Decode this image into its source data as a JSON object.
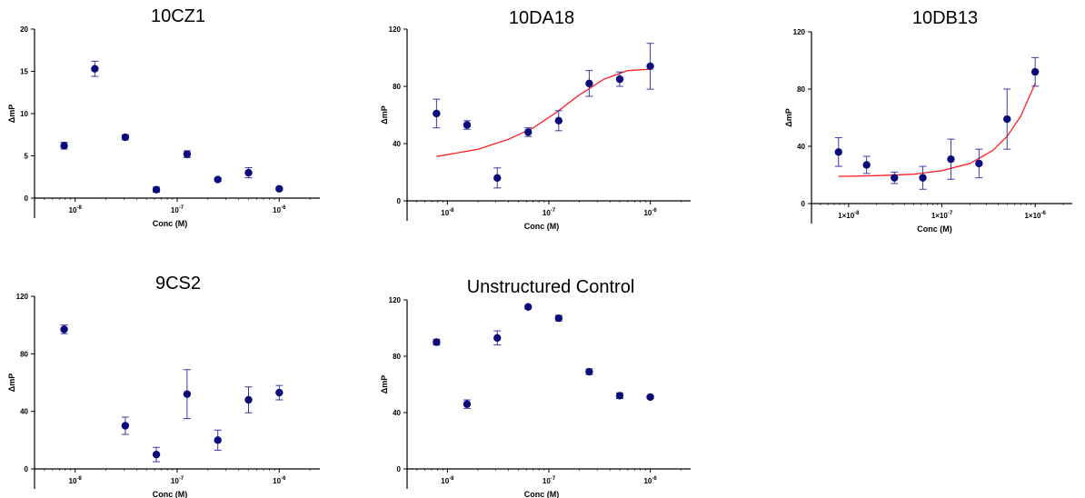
{
  "chart_data": [
    {
      "type": "scatter",
      "title": "10CZ1",
      "xlabel": "Conc (M)",
      "ylabel": "ΔmP",
      "xscale": "log",
      "ylim": [
        0,
        20
      ],
      "yticks": [
        0,
        5,
        10,
        15,
        20
      ],
      "xticks": [
        {
          "value": 1e-08,
          "base": "10",
          "exp": "-8"
        },
        {
          "value": 1e-07,
          "base": "10",
          "exp": "-7"
        },
        {
          "value": 1e-06,
          "base": "10",
          "exp": "-6"
        }
      ],
      "fit_curve": false,
      "points": [
        {
          "x": 7.8e-09,
          "y": 6.2,
          "err": 0.4
        },
        {
          "x": 1.56e-08,
          "y": 15.3,
          "err": 0.9
        },
        {
          "x": 3.1e-08,
          "y": 7.2,
          "err": 0.3
        },
        {
          "x": 6.25e-08,
          "y": 1.0,
          "err": 0.3
        },
        {
          "x": 1.25e-07,
          "y": 5.2,
          "err": 0.4
        },
        {
          "x": 2.5e-07,
          "y": 2.2,
          "err": 0.2
        },
        {
          "x": 5e-07,
          "y": 3.0,
          "err": 0.6
        },
        {
          "x": 1e-06,
          "y": 1.1,
          "err": 0.2
        }
      ]
    },
    {
      "type": "scatter",
      "title": "10DA18",
      "xlabel": "Conc (M)",
      "ylabel": "ΔmP",
      "xscale": "log",
      "ylim": [
        0,
        120
      ],
      "yticks": [
        0,
        40,
        80,
        120
      ],
      "xticks": [
        {
          "value": 1e-08,
          "base": "10",
          "exp": "-8"
        },
        {
          "value": 1e-07,
          "base": "10",
          "exp": "-7"
        },
        {
          "value": 1e-06,
          "base": "10",
          "exp": "-6"
        }
      ],
      "fit_curve": true,
      "curve_color": "#ff2020",
      "points": [
        {
          "x": 7.8e-09,
          "y": 61,
          "err": 10
        },
        {
          "x": 1.56e-08,
          "y": 53,
          "err": 3
        },
        {
          "x": 3.1e-08,
          "y": 16,
          "err": 7
        },
        {
          "x": 6.25e-08,
          "y": 48,
          "err": 3
        },
        {
          "x": 1.25e-07,
          "y": 56,
          "err": 7
        },
        {
          "x": 2.5e-07,
          "y": 82,
          "err": 9
        },
        {
          "x": 5e-07,
          "y": 85,
          "err": 5
        },
        {
          "x": 1e-06,
          "y": 94,
          "err": 16
        }
      ],
      "curve": [
        {
          "x": 7.8e-09,
          "y": 31
        },
        {
          "x": 2e-08,
          "y": 36
        },
        {
          "x": 4e-08,
          "y": 43
        },
        {
          "x": 7e-08,
          "y": 51
        },
        {
          "x": 1.2e-07,
          "y": 62
        },
        {
          "x": 2e-07,
          "y": 74
        },
        {
          "x": 3.5e-07,
          "y": 85
        },
        {
          "x": 6e-07,
          "y": 91
        },
        {
          "x": 1e-06,
          "y": 92
        }
      ]
    },
    {
      "type": "scatter",
      "title": "10DB13",
      "xlabel": "Conc (M)",
      "ylabel": "ΔmP",
      "xscale": "log",
      "ylim": [
        0,
        120
      ],
      "yticks": [
        0,
        40,
        80,
        120
      ],
      "xticks": [
        {
          "value": 1e-08,
          "base": "1×10",
          "exp": "-8"
        },
        {
          "value": 1e-07,
          "base": "1×10",
          "exp": "-7"
        },
        {
          "value": 1e-06,
          "base": "1×10",
          "exp": "-6"
        }
      ],
      "fit_curve": true,
      "curve_color": "#ff2020",
      "points": [
        {
          "x": 7.8e-09,
          "y": 36,
          "err": 10
        },
        {
          "x": 1.56e-08,
          "y": 27,
          "err": 6
        },
        {
          "x": 3.1e-08,
          "y": 18,
          "err": 4
        },
        {
          "x": 6.25e-08,
          "y": 18,
          "err": 8
        },
        {
          "x": 1.25e-07,
          "y": 31,
          "err": 14
        },
        {
          "x": 2.5e-07,
          "y": 28,
          "err": 10
        },
        {
          "x": 5e-07,
          "y": 59,
          "err": 21
        },
        {
          "x": 1e-06,
          "y": 92,
          "err": 10
        }
      ],
      "curve": [
        {
          "x": 7.8e-09,
          "y": 19
        },
        {
          "x": 2e-08,
          "y": 19.5
        },
        {
          "x": 5e-08,
          "y": 20.5
        },
        {
          "x": 1e-07,
          "y": 23
        },
        {
          "x": 2e-07,
          "y": 28
        },
        {
          "x": 3.5e-07,
          "y": 37
        },
        {
          "x": 5e-07,
          "y": 47
        },
        {
          "x": 7e-07,
          "y": 61
        },
        {
          "x": 1e-06,
          "y": 84
        }
      ]
    },
    {
      "type": "scatter",
      "title": "9CS2",
      "xlabel": "Conc (M)",
      "ylabel": "ΔmP",
      "xscale": "log",
      "ylim": [
        0,
        120
      ],
      "yticks": [
        0,
        40,
        80,
        120
      ],
      "xticks": [
        {
          "value": 1e-08,
          "base": "10",
          "exp": "-8"
        },
        {
          "value": 1e-07,
          "base": "10",
          "exp": "-7"
        },
        {
          "value": 1e-06,
          "base": "10",
          "exp": "-6"
        }
      ],
      "fit_curve": false,
      "points": [
        {
          "x": 7.8e-09,
          "y": 97,
          "err": 3
        },
        {
          "x": 3.1e-08,
          "y": 30,
          "err": 6
        },
        {
          "x": 6.25e-08,
          "y": 10,
          "err": 5
        },
        {
          "x": 1.25e-07,
          "y": 52,
          "err": 17
        },
        {
          "x": 2.5e-07,
          "y": 20,
          "err": 7
        },
        {
          "x": 5e-07,
          "y": 48,
          "err": 9
        },
        {
          "x": 1e-06,
          "y": 53,
          "err": 5
        }
      ]
    },
    {
      "type": "scatter",
      "title": "Unstructured Control",
      "xlabel": "Conc (M)",
      "ylabel": "ΔmP",
      "xscale": "log",
      "ylim": [
        0,
        120
      ],
      "yticks": [
        0,
        40,
        80,
        120
      ],
      "xticks": [
        {
          "value": 1e-08,
          "base": "10",
          "exp": "-8"
        },
        {
          "value": 1e-07,
          "base": "10",
          "exp": "-7"
        },
        {
          "value": 1e-06,
          "base": "10",
          "exp": "-6"
        }
      ],
      "fit_curve": false,
      "points": [
        {
          "x": 7.8e-09,
          "y": 90,
          "err": 2
        },
        {
          "x": 1.56e-08,
          "y": 46,
          "err": 3
        },
        {
          "x": 3.1e-08,
          "y": 93,
          "err": 5
        },
        {
          "x": 6.25e-08,
          "y": 115,
          "err": 0
        },
        {
          "x": 1.25e-07,
          "y": 107,
          "err": 2
        },
        {
          "x": 2.5e-07,
          "y": 69,
          "err": 2
        },
        {
          "x": 5e-07,
          "y": 52,
          "err": 2
        },
        {
          "x": 1e-06,
          "y": 51,
          "err": 1
        }
      ]
    }
  ]
}
